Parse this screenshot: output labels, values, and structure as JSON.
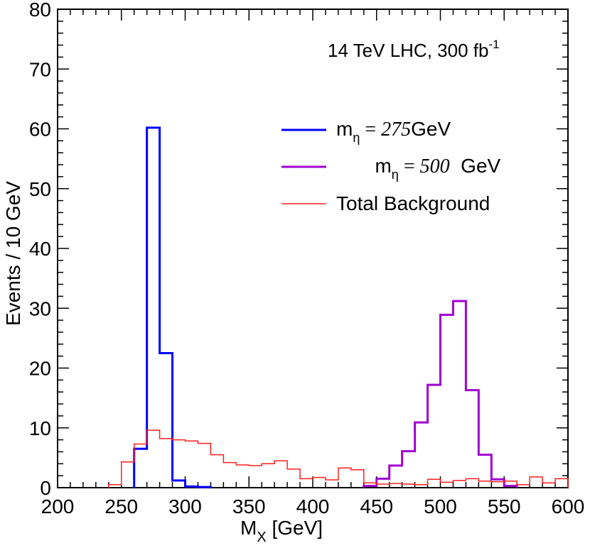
{
  "chart_data": {
    "type": "histogram",
    "annotation": {
      "main": "14 TeV LHC, 300 fb",
      "sup": "-1"
    },
    "xlabel": {
      "main": "M",
      "sub": "X",
      "rest": " [GeV]"
    },
    "ylabel": "Events / 10 GeV",
    "xlim": [
      200,
      600
    ],
    "ylim": [
      0,
      80
    ],
    "x_ticks": [
      "200",
      "250",
      "300",
      "350",
      "400",
      "450",
      "500",
      "550",
      "600"
    ],
    "y_ticks": [
      "0",
      "10",
      "20",
      "30",
      "40",
      "50",
      "60",
      "70",
      "80"
    ],
    "bin_width": 10,
    "legend": [
      {
        "m": "m",
        "sub": "η",
        "eq": " = ",
        "num": "275",
        "unit": "GeV"
      },
      {
        "m": "m",
        "sub": "η",
        "eq": " = ",
        "num": "500",
        "unit": "  GeV"
      },
      {
        "label": "Total Background"
      }
    ],
    "series": [
      {
        "name": "m_eta = 275 GeV",
        "color": "#0000ff",
        "bins": [
          [
            260,
            6.5
          ],
          [
            270,
            60.2
          ],
          [
            280,
            22.5
          ],
          [
            290,
            1.2
          ],
          [
            300,
            0.2
          ],
          [
            310,
            0.1
          ]
        ]
      },
      {
        "name": "m_eta = 500 GeV",
        "color": "#a000d0",
        "bins": [
          [
            440,
            0.3
          ],
          [
            450,
            1.5
          ],
          [
            460,
            3.7
          ],
          [
            470,
            6.1
          ],
          [
            480,
            10.9
          ],
          [
            490,
            17.2
          ],
          [
            500,
            28.9
          ],
          [
            510,
            31.2
          ],
          [
            520,
            16.3
          ],
          [
            530,
            5.5
          ],
          [
            540,
            1.4
          ],
          [
            550,
            0.3
          ]
        ]
      },
      {
        "name": "Total Background",
        "color": "#ff2020",
        "bins": [
          [
            240,
            0.5
          ],
          [
            250,
            4.3
          ],
          [
            260,
            7.3
          ],
          [
            270,
            9.6
          ],
          [
            280,
            8.2
          ],
          [
            290,
            8.0
          ],
          [
            300,
            7.8
          ],
          [
            310,
            7.4
          ],
          [
            320,
            5.5
          ],
          [
            330,
            4.2
          ],
          [
            340,
            3.8
          ],
          [
            350,
            3.7
          ],
          [
            360,
            4.0
          ],
          [
            370,
            4.5
          ],
          [
            380,
            3.1
          ],
          [
            390,
            1.5
          ],
          [
            400,
            1.7
          ],
          [
            410,
            1.3
          ],
          [
            420,
            3.3
          ],
          [
            430,
            3.0
          ],
          [
            440,
            0.8
          ],
          [
            450,
            0.6
          ],
          [
            460,
            0.7
          ],
          [
            470,
            0.6
          ],
          [
            480,
            0.5
          ],
          [
            490,
            1.4
          ],
          [
            500,
            0.9
          ],
          [
            510,
            1.2
          ],
          [
            520,
            1.5
          ],
          [
            530,
            1.1
          ],
          [
            540,
            1.0
          ],
          [
            550,
            1.1
          ],
          [
            560,
            0.5
          ],
          [
            570,
            1.8
          ],
          [
            580,
            0.8
          ],
          [
            590,
            1.5
          ]
        ]
      }
    ]
  }
}
